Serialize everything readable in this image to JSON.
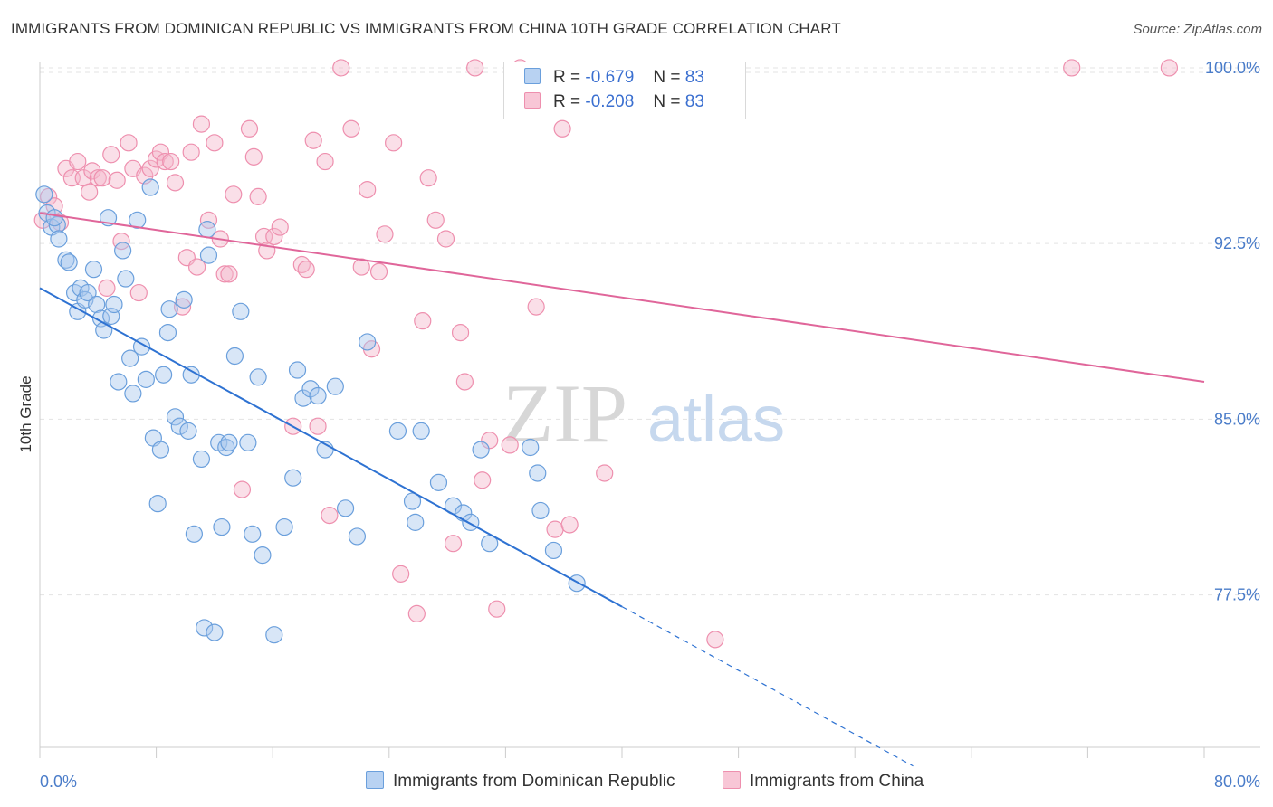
{
  "title": "IMMIGRANTS FROM DOMINICAN REPUBLIC VS IMMIGRANTS FROM CHINA 10TH GRADE CORRELATION CHART",
  "source": "Source: ZipAtlas.com",
  "watermark": {
    "zip": "ZIP",
    "atlas": "atlas"
  },
  "legend": {
    "r_label": "R =",
    "n_label": "N =",
    "series1": {
      "r": "-0.679",
      "n": "83"
    },
    "series2": {
      "r": "-0.208",
      "n": "83"
    }
  },
  "colors": {
    "blue_fill": "#a8c8ee",
    "blue_stroke": "#6a9fdc",
    "blue_line": "#2e72d2",
    "pink_fill": "#f5b8cb",
    "pink_stroke": "#ee8fae",
    "pink_line": "#e0669a",
    "axis_text": "#4a7cc9",
    "grid": "#e3e3e3"
  },
  "chart_data": {
    "type": "scatter",
    "xlabel": "",
    "ylabel": "10th Grade",
    "xlim": [
      0,
      80
    ],
    "ylim": [
      71.0,
      100.5
    ],
    "x_tick_labels": [
      "0.0%",
      "80.0%"
    ],
    "y_ticks": [
      77.5,
      85.0,
      92.5,
      100.0
    ],
    "y_tick_labels": [
      "77.5%",
      "85.0%",
      "92.5%",
      "100.0%"
    ],
    "grid": "horizontal dashed",
    "legend_position": "top-center",
    "series": [
      {
        "name": "Immigrants from Dominican Republic",
        "color": "blue",
        "r": -0.679,
        "n": 83,
        "trend": {
          "x": [
            0,
            40
          ],
          "y": [
            90.6,
            77.0
          ],
          "dashed_to_x": 60,
          "dashed_to_y": 70.2
        },
        "points": [
          [
            0.3,
            94.6
          ],
          [
            0.5,
            93.8
          ],
          [
            0.8,
            93.2
          ],
          [
            1.2,
            93.3
          ],
          [
            1.3,
            92.7
          ],
          [
            1.8,
            91.8
          ],
          [
            2.0,
            91.7
          ],
          [
            2.4,
            90.4
          ],
          [
            2.6,
            89.6
          ],
          [
            2.8,
            90.6
          ],
          [
            3.1,
            90.1
          ],
          [
            3.3,
            90.4
          ],
          [
            3.7,
            91.4
          ],
          [
            3.9,
            89.9
          ],
          [
            4.2,
            89.3
          ],
          [
            4.4,
            88.8
          ],
          [
            4.7,
            93.6
          ],
          [
            4.9,
            89.4
          ],
          [
            5.1,
            89.9
          ],
          [
            5.4,
            86.6
          ],
          [
            5.7,
            92.2
          ],
          [
            5.9,
            91.0
          ],
          [
            6.2,
            87.6
          ],
          [
            6.4,
            86.1
          ],
          [
            6.7,
            93.5
          ],
          [
            7.0,
            88.1
          ],
          [
            7.3,
            86.7
          ],
          [
            7.6,
            94.9
          ],
          [
            7.8,
            84.2
          ],
          [
            8.1,
            81.4
          ],
          [
            8.3,
            83.7
          ],
          [
            8.5,
            86.9
          ],
          [
            8.8,
            88.7
          ],
          [
            8.9,
            89.7
          ],
          [
            9.3,
            85.1
          ],
          [
            9.6,
            84.7
          ],
          [
            9.9,
            90.1
          ],
          [
            10.2,
            84.5
          ],
          [
            10.4,
            86.9
          ],
          [
            10.6,
            80.1
          ],
          [
            11.1,
            83.3
          ],
          [
            11.3,
            76.1
          ],
          [
            11.6,
            92.0
          ],
          [
            11.5,
            93.1
          ],
          [
            12.0,
            75.9
          ],
          [
            12.3,
            84.0
          ],
          [
            12.5,
            80.4
          ],
          [
            12.8,
            83.8
          ],
          [
            13.0,
            84.0
          ],
          [
            13.4,
            87.7
          ],
          [
            13.8,
            89.6
          ],
          [
            14.3,
            84.0
          ],
          [
            14.6,
            80.1
          ],
          [
            15.0,
            86.8
          ],
          [
            15.3,
            79.2
          ],
          [
            16.1,
            75.8
          ],
          [
            16.8,
            80.4
          ],
          [
            17.4,
            82.5
          ],
          [
            17.7,
            87.1
          ],
          [
            18.1,
            85.9
          ],
          [
            18.6,
            86.3
          ],
          [
            19.1,
            86.0
          ],
          [
            19.6,
            83.7
          ],
          [
            20.3,
            86.4
          ],
          [
            21.0,
            81.2
          ],
          [
            21.8,
            80.0
          ],
          [
            22.5,
            88.3
          ],
          [
            24.6,
            84.5
          ],
          [
            25.6,
            81.5
          ],
          [
            25.8,
            80.6
          ],
          [
            26.2,
            84.5
          ],
          [
            27.4,
            82.3
          ],
          [
            28.4,
            81.3
          ],
          [
            29.1,
            81.0
          ],
          [
            29.6,
            80.6
          ],
          [
            30.3,
            83.7
          ],
          [
            30.9,
            79.7
          ],
          [
            33.7,
            83.8
          ],
          [
            34.2,
            82.7
          ],
          [
            34.4,
            81.1
          ],
          [
            35.3,
            79.4
          ],
          [
            36.9,
            78.0
          ],
          [
            1.0,
            93.6
          ]
        ]
      },
      {
        "name": "Immigrants from China",
        "color": "pink",
        "r": -0.208,
        "n": 83,
        "trend": {
          "x": [
            0,
            80
          ],
          "y": [
            93.8,
            86.6
          ]
        },
        "points": [
          [
            0.2,
            93.5
          ],
          [
            0.6,
            94.5
          ],
          [
            1.0,
            94.1
          ],
          [
            1.4,
            93.4
          ],
          [
            1.8,
            95.7
          ],
          [
            2.2,
            95.3
          ],
          [
            2.6,
            96.0
          ],
          [
            3.0,
            95.3
          ],
          [
            3.4,
            94.7
          ],
          [
            3.6,
            95.6
          ],
          [
            4.0,
            95.3
          ],
          [
            4.3,
            95.3
          ],
          [
            4.6,
            90.6
          ],
          [
            4.9,
            96.3
          ],
          [
            5.3,
            95.2
          ],
          [
            5.6,
            92.6
          ],
          [
            6.1,
            96.8
          ],
          [
            6.4,
            95.7
          ],
          [
            6.8,
            90.4
          ],
          [
            7.2,
            95.4
          ],
          [
            7.6,
            95.7
          ],
          [
            8.0,
            96.1
          ],
          [
            8.3,
            96.4
          ],
          [
            8.6,
            96.0
          ],
          [
            9.0,
            96.0
          ],
          [
            9.3,
            95.1
          ],
          [
            9.8,
            89.8
          ],
          [
            10.1,
            91.9
          ],
          [
            10.4,
            96.4
          ],
          [
            10.8,
            91.5
          ],
          [
            11.1,
            97.6
          ],
          [
            11.6,
            93.5
          ],
          [
            12.0,
            96.8
          ],
          [
            12.4,
            92.7
          ],
          [
            12.7,
            91.2
          ],
          [
            13.0,
            91.2
          ],
          [
            13.3,
            94.6
          ],
          [
            13.9,
            82.0
          ],
          [
            14.4,
            97.4
          ],
          [
            14.7,
            96.2
          ],
          [
            15.0,
            94.5
          ],
          [
            15.4,
            92.8
          ],
          [
            15.6,
            92.2
          ],
          [
            16.1,
            92.8
          ],
          [
            16.5,
            93.2
          ],
          [
            17.4,
            84.7
          ],
          [
            18.0,
            91.6
          ],
          [
            18.3,
            91.4
          ],
          [
            18.8,
            96.9
          ],
          [
            19.1,
            84.7
          ],
          [
            19.6,
            96.0
          ],
          [
            19.9,
            80.9
          ],
          [
            20.7,
            100.0
          ],
          [
            21.4,
            97.4
          ],
          [
            22.1,
            91.5
          ],
          [
            22.5,
            94.8
          ],
          [
            22.8,
            88.0
          ],
          [
            23.3,
            91.3
          ],
          [
            23.7,
            92.9
          ],
          [
            24.3,
            96.8
          ],
          [
            24.8,
            78.4
          ],
          [
            25.9,
            76.7
          ],
          [
            26.3,
            89.2
          ],
          [
            26.7,
            95.3
          ],
          [
            27.2,
            93.5
          ],
          [
            27.9,
            92.7
          ],
          [
            28.4,
            79.7
          ],
          [
            28.9,
            88.7
          ],
          [
            29.2,
            86.6
          ],
          [
            29.9,
            100.0
          ],
          [
            30.4,
            82.4
          ],
          [
            30.9,
            84.1
          ],
          [
            31.4,
            76.9
          ],
          [
            32.3,
            83.9
          ],
          [
            33.0,
            100.0
          ],
          [
            34.1,
            89.8
          ],
          [
            35.4,
            80.3
          ],
          [
            35.9,
            97.4
          ],
          [
            36.4,
            80.5
          ],
          [
            38.8,
            82.7
          ],
          [
            46.4,
            75.6
          ],
          [
            70.9,
            100.0
          ],
          [
            77.6,
            100.0
          ]
        ]
      }
    ]
  },
  "bottom_legend": {
    "series1": "Immigrants from Dominican Republic",
    "series2": "Immigrants from China"
  }
}
